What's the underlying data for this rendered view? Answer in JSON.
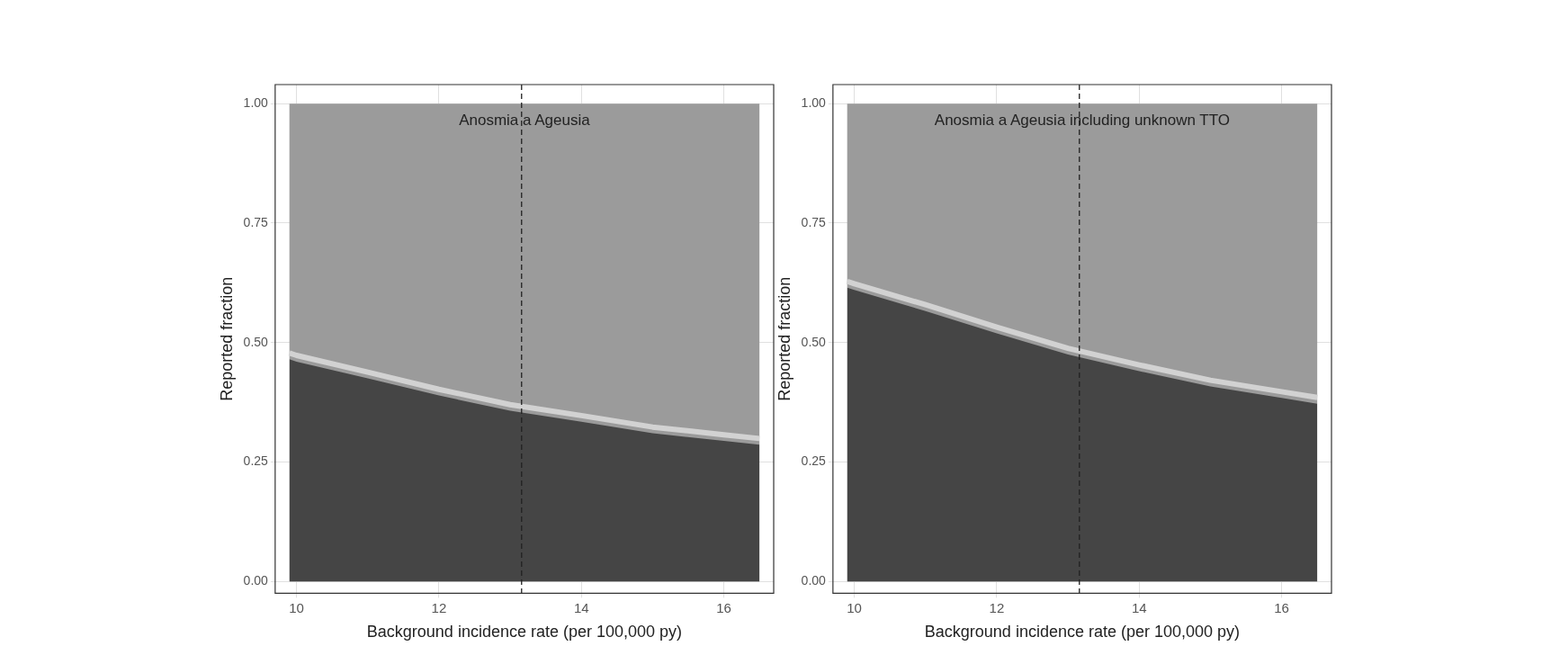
{
  "chart_data": [
    {
      "type": "area",
      "title": "Anosmia a Ageusia",
      "xlabel": "Background incidence rate (per 100,000 py)",
      "ylabel": "Reported fraction",
      "x": [
        9.9,
        10,
        11,
        12,
        13,
        14,
        15,
        16,
        16.5
      ],
      "series": [
        {
          "color": "#454545",
          "values": [
            0.465,
            0.46,
            0.425,
            0.389,
            0.357,
            0.334,
            0.31,
            0.294,
            0.286
          ]
        },
        {
          "type": "line",
          "color": "#d2d2d2",
          "values": [
            0.478,
            0.473,
            0.438,
            0.402,
            0.37,
            0.347,
            0.323,
            0.307,
            0.299
          ]
        }
      ],
      "xlim": [
        9.7,
        16.7
      ],
      "ylim": [
        -0.025,
        1.04
      ],
      "xticks": [
        10,
        12,
        14,
        16
      ],
      "yticks": [
        {
          "value": 0,
          "label": "0.00"
        },
        {
          "value": 0.25,
          "label": "0.25"
        },
        {
          "value": 0.5,
          "label": "0.50"
        },
        {
          "value": 0.75,
          "label": "0.75"
        },
        {
          "value": 1,
          "label": "1.00"
        }
      ],
      "grid": true,
      "marker": "none",
      "bands": [
        {
          "axis": "y",
          "from": 0,
          "to": 1,
          "color": "#9b9b9b"
        }
      ],
      "ref_lines": [
        {
          "axis": "x",
          "value": 13.16,
          "color": "#222222",
          "line_style": "dashed"
        }
      ]
    },
    {
      "type": "area",
      "title": "Anosmia a Ageusia including unknown TTO",
      "xlabel": "Background incidence rate (per 100,000 py)",
      "ylabel": "Reported fraction",
      "x": [
        9.9,
        10,
        11,
        12,
        13,
        14,
        15,
        16,
        16.5
      ],
      "series": [
        {
          "color": "#454545",
          "values": [
            0.615,
            0.61,
            0.566,
            0.519,
            0.475,
            0.44,
            0.408,
            0.384,
            0.372
          ]
        },
        {
          "type": "line",
          "color": "#d2d2d2",
          "values": [
            0.628,
            0.623,
            0.579,
            0.532,
            0.488,
            0.453,
            0.421,
            0.397,
            0.385
          ]
        }
      ],
      "xlim": [
        9.7,
        16.7
      ],
      "ylim": [
        -0.025,
        1.04
      ],
      "xticks": [
        10,
        12,
        14,
        16
      ],
      "yticks": [
        {
          "value": 0,
          "label": "0.00"
        },
        {
          "value": 0.25,
          "label": "0.25"
        },
        {
          "value": 0.5,
          "label": "0.50"
        },
        {
          "value": 0.75,
          "label": "0.75"
        },
        {
          "value": 1,
          "label": "1.00"
        }
      ],
      "grid": true,
      "marker": "none",
      "bands": [
        {
          "axis": "y",
          "from": 0,
          "to": 1,
          "color": "#9b9b9b"
        }
      ],
      "ref_lines": [
        {
          "axis": "x",
          "value": 13.16,
          "color": "#222222",
          "line_style": "dashed"
        }
      ]
    }
  ]
}
